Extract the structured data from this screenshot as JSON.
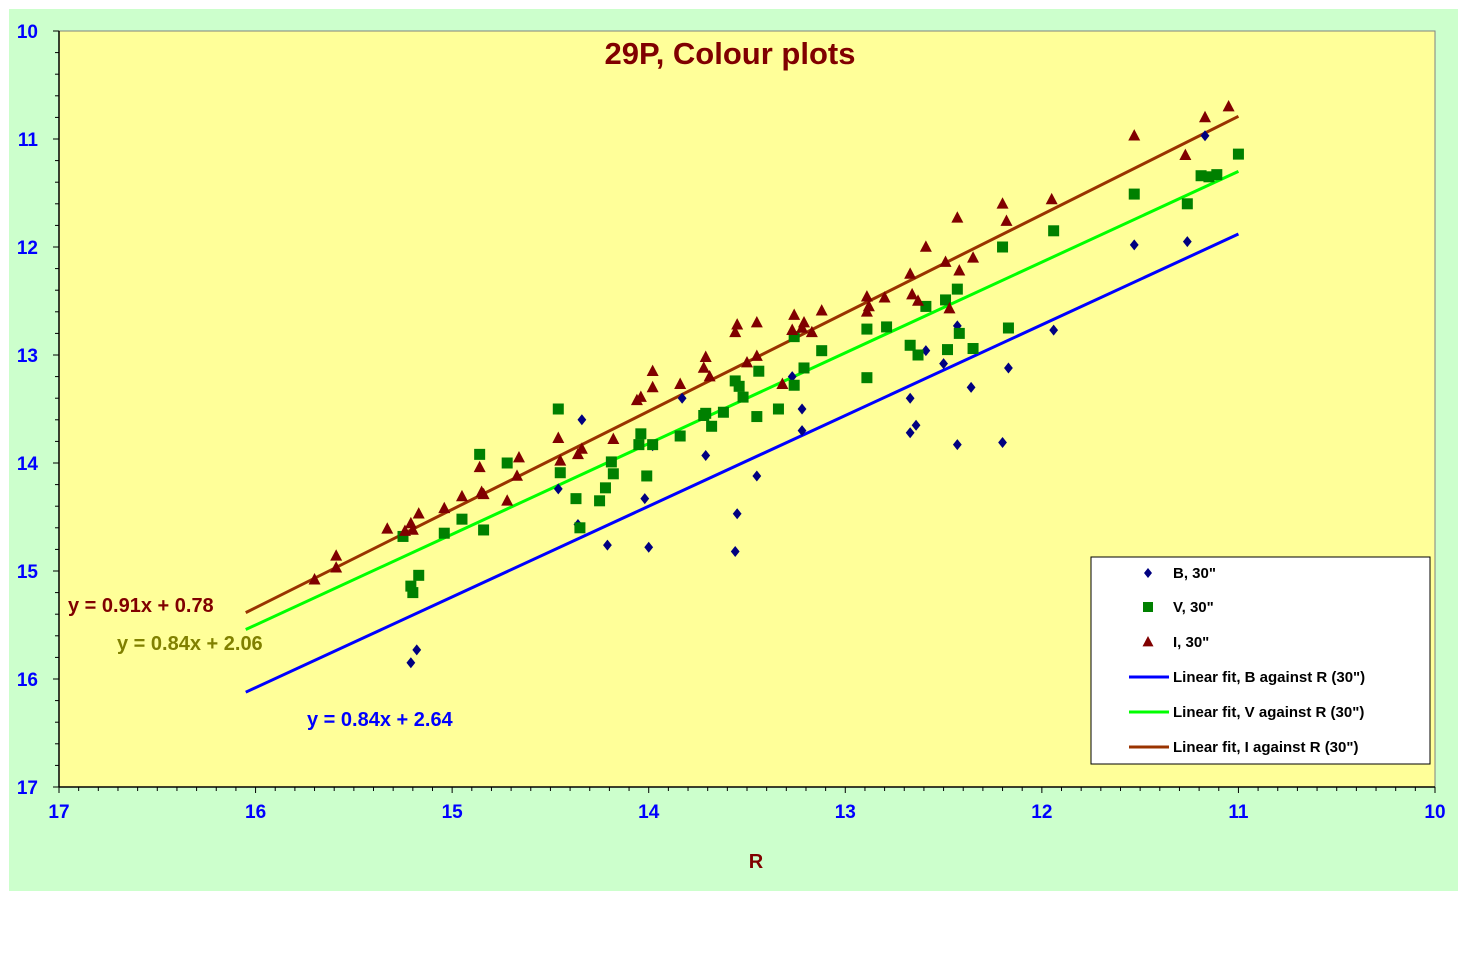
{
  "chart_data": {
    "type": "scatter",
    "title": "29P, Colour plots",
    "xlabel": "R",
    "ylabel": "",
    "xlim": [
      17,
      10
    ],
    "ylim": [
      10,
      17
    ],
    "x_reversed": true,
    "y_reversed": true,
    "x_ticks": [
      "17",
      "16",
      "15",
      "14",
      "13",
      "12",
      "11",
      "10"
    ],
    "y_ticks": [
      "10",
      "11",
      "12",
      "13",
      "14",
      "15",
      "16",
      "17"
    ],
    "grid": false,
    "legend_position": "bottom-right",
    "background_plot": "#ffff99",
    "background_chart": "#ccffcc",
    "series": [
      {
        "name": "B, 30\"",
        "marker": "diamond",
        "color": "#000080",
        "points": [
          [
            11.17,
            10.97
          ],
          [
            11.53,
            11.98
          ],
          [
            11.26,
            11.95
          ],
          [
            11.94,
            12.77
          ],
          [
            12.17,
            13.12
          ],
          [
            12.43,
            12.73
          ],
          [
            12.36,
            13.3
          ],
          [
            12.43,
            13.83
          ],
          [
            12.2,
            13.81
          ],
          [
            12.5,
            13.08
          ],
          [
            12.59,
            12.96
          ],
          [
            12.67,
            13.4
          ],
          [
            12.67,
            13.72
          ],
          [
            12.64,
            13.65
          ],
          [
            13.22,
            13.5
          ],
          [
            13.22,
            13.7
          ],
          [
            13.27,
            13.2
          ],
          [
            13.45,
            14.12
          ],
          [
            13.55,
            14.47
          ],
          [
            13.56,
            14.82
          ],
          [
            13.83,
            13.4
          ],
          [
            13.71,
            13.93
          ],
          [
            13.98,
            13.84
          ],
          [
            14.02,
            14.33
          ],
          [
            14.0,
            14.78
          ],
          [
            14.21,
            14.76
          ],
          [
            14.34,
            13.6
          ],
          [
            14.36,
            14.57
          ],
          [
            14.46,
            14.24
          ],
          [
            15.18,
            15.73
          ],
          [
            15.21,
            15.85
          ]
        ]
      },
      {
        "name": "V, 30\"",
        "marker": "square",
        "color": "#008000",
        "points": [
          [
            11.0,
            11.14
          ],
          [
            11.11,
            11.33
          ],
          [
            11.15,
            11.35
          ],
          [
            11.19,
            11.34
          ],
          [
            11.26,
            11.6
          ],
          [
            11.53,
            11.51
          ],
          [
            11.94,
            11.85
          ],
          [
            12.2,
            12.0
          ],
          [
            12.17,
            12.75
          ],
          [
            12.35,
            12.94
          ],
          [
            12.42,
            12.8
          ],
          [
            12.43,
            12.39
          ],
          [
            12.49,
            12.49
          ],
          [
            12.48,
            12.95
          ],
          [
            12.59,
            12.55
          ],
          [
            12.63,
            13.0
          ],
          [
            12.67,
            12.91
          ],
          [
            12.79,
            12.74
          ],
          [
            12.89,
            12.76
          ],
          [
            12.89,
            13.21
          ],
          [
            13.12,
            12.96
          ],
          [
            13.21,
            13.12
          ],
          [
            13.26,
            12.83
          ],
          [
            13.26,
            13.28
          ],
          [
            13.34,
            13.5
          ],
          [
            13.44,
            13.15
          ],
          [
            13.45,
            13.57
          ],
          [
            13.52,
            13.39
          ],
          [
            13.54,
            13.29
          ],
          [
            13.56,
            13.24
          ],
          [
            13.62,
            13.53
          ],
          [
            13.68,
            13.66
          ],
          [
            13.71,
            13.54
          ],
          [
            13.72,
            13.56
          ],
          [
            13.84,
            13.75
          ],
          [
            13.98,
            13.83
          ],
          [
            14.01,
            14.12
          ],
          [
            14.04,
            13.73
          ],
          [
            14.05,
            13.83
          ],
          [
            14.18,
            14.1
          ],
          [
            14.19,
            13.99
          ],
          [
            14.22,
            14.23
          ],
          [
            14.25,
            14.35
          ],
          [
            14.35,
            14.6
          ],
          [
            14.37,
            14.33
          ],
          [
            14.45,
            14.09
          ],
          [
            14.46,
            13.5
          ],
          [
            14.72,
            14.0
          ],
          [
            14.84,
            14.62
          ],
          [
            14.86,
            13.92
          ],
          [
            14.95,
            14.52
          ],
          [
            15.04,
            14.65
          ],
          [
            15.17,
            15.04
          ],
          [
            15.2,
            15.2
          ],
          [
            15.21,
            15.14
          ],
          [
            15.25,
            14.68
          ]
        ]
      },
      {
        "name": "I, 30\"",
        "marker": "triangle",
        "color": "#800000",
        "points": [
          [
            11.05,
            10.7
          ],
          [
            11.17,
            10.8
          ],
          [
            11.27,
            11.15
          ],
          [
            11.53,
            10.97
          ],
          [
            11.95,
            11.56
          ],
          [
            12.18,
            11.76
          ],
          [
            12.2,
            11.6
          ],
          [
            12.35,
            12.1
          ],
          [
            12.43,
            11.73
          ],
          [
            12.42,
            12.22
          ],
          [
            12.49,
            12.14
          ],
          [
            12.47,
            12.57
          ],
          [
            12.59,
            12.0
          ],
          [
            12.63,
            12.5
          ],
          [
            12.66,
            12.44
          ],
          [
            12.67,
            12.25
          ],
          [
            12.8,
            12.47
          ],
          [
            12.89,
            12.46
          ],
          [
            12.89,
            12.6
          ],
          [
            12.88,
            12.55
          ],
          [
            13.12,
            12.59
          ],
          [
            13.17,
            12.79
          ],
          [
            13.21,
            12.7
          ],
          [
            13.22,
            12.75
          ],
          [
            13.26,
            12.63
          ],
          [
            13.27,
            12.77
          ],
          [
            13.32,
            13.27
          ],
          [
            13.45,
            12.7
          ],
          [
            13.45,
            13.01
          ],
          [
            13.5,
            13.07
          ],
          [
            13.55,
            12.72
          ],
          [
            13.56,
            12.79
          ],
          [
            13.69,
            13.2
          ],
          [
            13.71,
            13.02
          ],
          [
            13.72,
            13.12
          ],
          [
            13.84,
            13.27
          ],
          [
            13.98,
            13.15
          ],
          [
            13.98,
            13.3
          ],
          [
            14.04,
            13.39
          ],
          [
            14.06,
            13.42
          ],
          [
            14.18,
            13.78
          ],
          [
            14.34,
            13.87
          ],
          [
            14.36,
            13.92
          ],
          [
            14.45,
            13.98
          ],
          [
            14.46,
            13.77
          ],
          [
            14.66,
            13.95
          ],
          [
            14.67,
            14.12
          ],
          [
            14.72,
            14.35
          ],
          [
            14.84,
            14.29
          ],
          [
            14.85,
            14.27
          ],
          [
            14.86,
            14.04
          ],
          [
            14.95,
            14.31
          ],
          [
            15.04,
            14.42
          ],
          [
            15.17,
            14.47
          ],
          [
            15.2,
            14.62
          ],
          [
            15.21,
            14.56
          ],
          [
            15.24,
            14.63
          ],
          [
            15.33,
            14.61
          ],
          [
            15.59,
            14.97
          ],
          [
            15.59,
            14.86
          ],
          [
            15.7,
            15.08
          ]
        ]
      }
    ],
    "fits": [
      {
        "name": "Linear fit, B against R (30\")",
        "color": "#0000ff",
        "slope": 0.84,
        "intercept": 2.64,
        "x_range": [
          11,
          16.05
        ],
        "equation": "y = 0.84x + 2.64",
        "equation_color": "#0000ff"
      },
      {
        "name": "Linear fit, V against R (30\")",
        "color": "#00ff00",
        "slope": 0.84,
        "intercept": 2.06,
        "x_range": [
          11,
          16.05
        ],
        "equation": "y = 0.84x + 2.06",
        "equation_color": "#808000"
      },
      {
        "name": "Linear fit, I against R (30\")",
        "color": "#993300",
        "slope": 0.91,
        "intercept": 0.78,
        "x_range": [
          11,
          16.05
        ],
        "equation": "y = 0.91x + 0.78",
        "equation_color": "#800000"
      }
    ]
  }
}
